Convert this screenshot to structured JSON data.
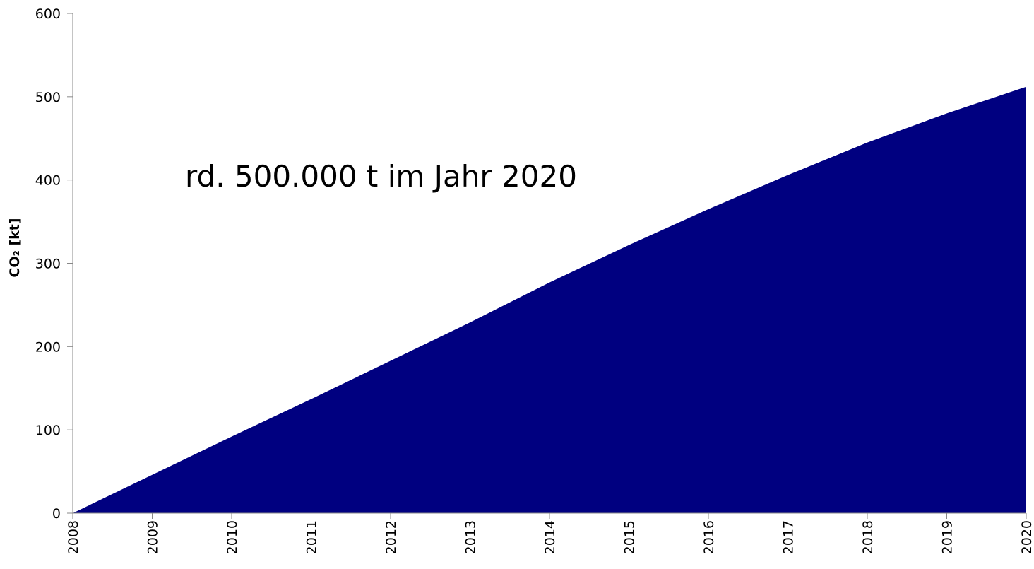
{
  "chart_data": {
    "type": "area",
    "title": "",
    "xlabel": "",
    "ylabel": "CO₂ [kt]",
    "x": [
      "2008",
      "2009",
      "2010",
      "2011",
      "2012",
      "2013",
      "2014",
      "2015",
      "2016",
      "2017",
      "2018",
      "2019",
      "2020"
    ],
    "series": [
      {
        "values": [
          0,
          46,
          92,
          137,
          183,
          229,
          277,
          322,
          365,
          406,
          445,
          480,
          512
        ]
      }
    ],
    "ylim": [
      0,
      600
    ],
    "yticks": [
      "0",
      "100",
      "200",
      "300",
      "400",
      "500",
      "600"
    ],
    "grid": false,
    "legend": "none",
    "annotation": "rd. 500.000 t im Jahr 2020",
    "colors": {
      "fill": "#000080",
      "axis": "#888888",
      "text": "#000000"
    }
  }
}
